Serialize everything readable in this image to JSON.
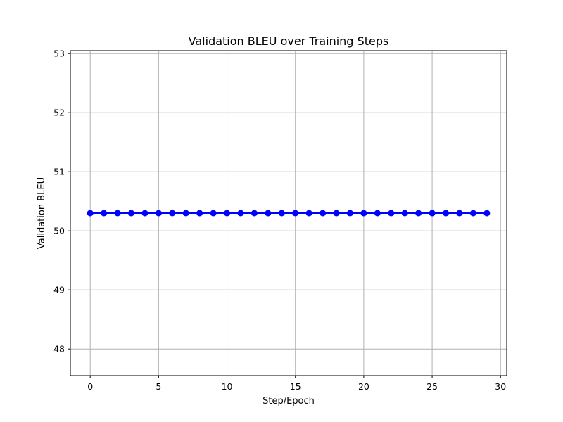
{
  "chart_data": {
    "type": "line",
    "title": "Validation BLEU over Training Steps",
    "xlabel": "Step/Epoch",
    "ylabel": "Validation BLEU",
    "xlim": [
      -1.45,
      30.45
    ],
    "ylim": [
      47.55,
      53.05
    ],
    "xticks": [
      0,
      5,
      10,
      15,
      20,
      25,
      30
    ],
    "yticks": [
      48,
      49,
      50,
      51,
      52,
      53
    ],
    "grid": true,
    "x": [
      0,
      1,
      2,
      3,
      4,
      5,
      6,
      7,
      8,
      9,
      10,
      11,
      12,
      13,
      14,
      15,
      16,
      17,
      18,
      19,
      20,
      21,
      22,
      23,
      24,
      25,
      26,
      27,
      28,
      29
    ],
    "series": [
      {
        "color": "#0000ff",
        "marker": "circle",
        "values": [
          50.3,
          50.3,
          50.3,
          50.3,
          50.3,
          50.3,
          50.3,
          50.3,
          50.3,
          50.3,
          50.3,
          50.3,
          50.3,
          50.3,
          50.3,
          50.3,
          50.3,
          50.3,
          50.3,
          50.3,
          50.3,
          50.3,
          50.3,
          50.3,
          50.3,
          50.3,
          50.3,
          50.3,
          50.3,
          50.3
        ]
      }
    ]
  }
}
